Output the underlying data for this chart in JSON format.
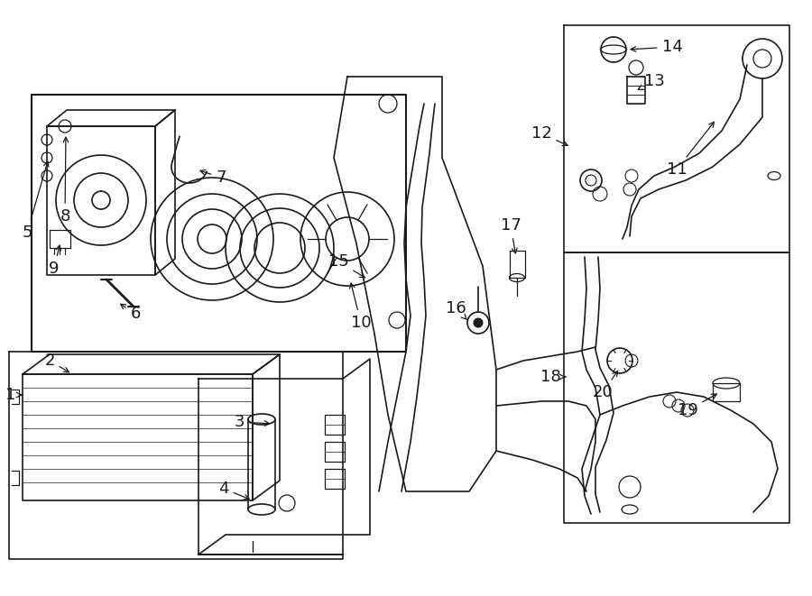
{
  "bg_color": "#ffffff",
  "line_color": "#1a1a1a",
  "lw": 1.2,
  "label_fontsize": 12,
  "figw": 9.0,
  "figh": 6.61,
  "dpi": 100
}
